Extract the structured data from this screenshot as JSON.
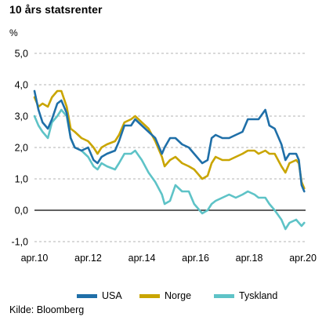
{
  "chart_data": {
    "type": "line",
    "title": "10 års statsrenter",
    "ylabel": "%",
    "ylim": [
      -1.0,
      5.0
    ],
    "yticks": [
      "5,0",
      "4,0",
      "3,0",
      "2,0",
      "1,0",
      "0,0",
      "-1,0"
    ],
    "ytick_values": [
      5,
      4,
      3,
      2,
      1,
      0,
      -1
    ],
    "xlim": [
      2010.25,
      2020.35
    ],
    "xticks": [
      "apr.10",
      "apr.12",
      "apr.14",
      "apr.16",
      "apr.18",
      "apr.20"
    ],
    "xtick_values": [
      2010.25,
      2012.25,
      2014.25,
      2016.25,
      2018.25,
      2020.25
    ],
    "grid": true,
    "legend_position": "bottom",
    "series": [
      {
        "name": "USA",
        "color": "#1f6fa8",
        "x": [
          2010.25,
          2010.4,
          2010.55,
          2010.75,
          2010.9,
          2011.1,
          2011.25,
          2011.45,
          2011.6,
          2011.75,
          2012.0,
          2012.25,
          2012.45,
          2012.6,
          2012.75,
          2012.95,
          2013.25,
          2013.4,
          2013.6,
          2013.85,
          2014.0,
          2014.25,
          2014.5,
          2014.75,
          2015.0,
          2015.1,
          2015.3,
          2015.5,
          2015.75,
          2016.0,
          2016.2,
          2016.5,
          2016.7,
          2016.85,
          2017.0,
          2017.25,
          2017.5,
          2017.75,
          2018.0,
          2018.2,
          2018.45,
          2018.6,
          2018.85,
          2019.0,
          2019.2,
          2019.45,
          2019.6,
          2019.75,
          2020.0,
          2020.1,
          2020.2,
          2020.3
        ],
        "y": [
          3.8,
          3.2,
          2.8,
          2.6,
          2.9,
          3.4,
          3.5,
          3.1,
          2.3,
          2.0,
          1.9,
          2.0,
          1.6,
          1.5,
          1.7,
          1.8,
          1.9,
          2.2,
          2.7,
          2.7,
          2.9,
          2.7,
          2.5,
          2.3,
          1.8,
          2.0,
          2.3,
          2.3,
          2.1,
          2.0,
          1.8,
          1.5,
          1.6,
          2.3,
          2.4,
          2.3,
          2.3,
          2.4,
          2.5,
          2.9,
          2.9,
          2.9,
          3.2,
          2.7,
          2.6,
          2.1,
          1.6,
          1.8,
          1.8,
          1.6,
          0.8,
          0.6
        ]
      },
      {
        "name": "Norge",
        "color": "#c9a500",
        "x": [
          2010.25,
          2010.4,
          2010.55,
          2010.75,
          2010.9,
          2011.1,
          2011.25,
          2011.45,
          2011.6,
          2011.75,
          2012.0,
          2012.25,
          2012.45,
          2012.6,
          2012.75,
          2012.95,
          2013.25,
          2013.4,
          2013.6,
          2013.85,
          2014.0,
          2014.25,
          2014.5,
          2014.75,
          2015.0,
          2015.1,
          2015.3,
          2015.5,
          2015.75,
          2016.0,
          2016.2,
          2016.5,
          2016.7,
          2016.85,
          2017.0,
          2017.25,
          2017.5,
          2017.75,
          2018.0,
          2018.2,
          2018.45,
          2018.6,
          2018.85,
          2019.0,
          2019.2,
          2019.45,
          2019.6,
          2019.75,
          2020.0,
          2020.1,
          2020.2,
          2020.3
        ],
        "y": [
          3.6,
          3.3,
          3.4,
          3.3,
          3.6,
          3.8,
          3.8,
          3.3,
          2.6,
          2.5,
          2.3,
          2.2,
          2.0,
          1.8,
          2.0,
          2.1,
          2.2,
          2.4,
          2.8,
          2.9,
          3.0,
          2.8,
          2.6,
          2.2,
          1.7,
          1.4,
          1.6,
          1.7,
          1.5,
          1.4,
          1.3,
          1.0,
          1.1,
          1.5,
          1.7,
          1.6,
          1.6,
          1.7,
          1.8,
          1.9,
          1.9,
          1.8,
          1.9,
          1.8,
          1.8,
          1.4,
          1.2,
          1.5,
          1.6,
          1.5,
          0.9,
          0.7
        ]
      },
      {
        "name": "Tyskland",
        "color": "#5ec3c7",
        "x": [
          2010.25,
          2010.4,
          2010.55,
          2010.75,
          2010.9,
          2011.1,
          2011.25,
          2011.45,
          2011.6,
          2011.75,
          2012.0,
          2012.25,
          2012.45,
          2012.6,
          2012.75,
          2012.95,
          2013.25,
          2013.4,
          2013.6,
          2013.85,
          2014.0,
          2014.25,
          2014.5,
          2014.75,
          2015.0,
          2015.1,
          2015.3,
          2015.5,
          2015.75,
          2016.0,
          2016.2,
          2016.5,
          2016.7,
          2016.85,
          2017.0,
          2017.25,
          2017.5,
          2017.75,
          2018.0,
          2018.2,
          2018.45,
          2018.6,
          2018.85,
          2019.0,
          2019.2,
          2019.45,
          2019.6,
          2019.75,
          2020.0,
          2020.1,
          2020.2,
          2020.3
        ],
        "y": [
          3.0,
          2.7,
          2.5,
          2.3,
          2.8,
          3.0,
          3.2,
          3.0,
          2.3,
          2.0,
          1.9,
          1.7,
          1.4,
          1.3,
          1.5,
          1.4,
          1.3,
          1.5,
          1.8,
          1.8,
          1.9,
          1.6,
          1.2,
          0.9,
          0.5,
          0.2,
          0.3,
          0.8,
          0.6,
          0.6,
          0.2,
          -0.1,
          0.0,
          0.2,
          0.3,
          0.4,
          0.5,
          0.4,
          0.5,
          0.6,
          0.5,
          0.4,
          0.4,
          0.2,
          0.0,
          -0.3,
          -0.6,
          -0.4,
          -0.3,
          -0.4,
          -0.5,
          -0.4
        ]
      }
    ]
  },
  "source": "Kilde: Bloomberg"
}
